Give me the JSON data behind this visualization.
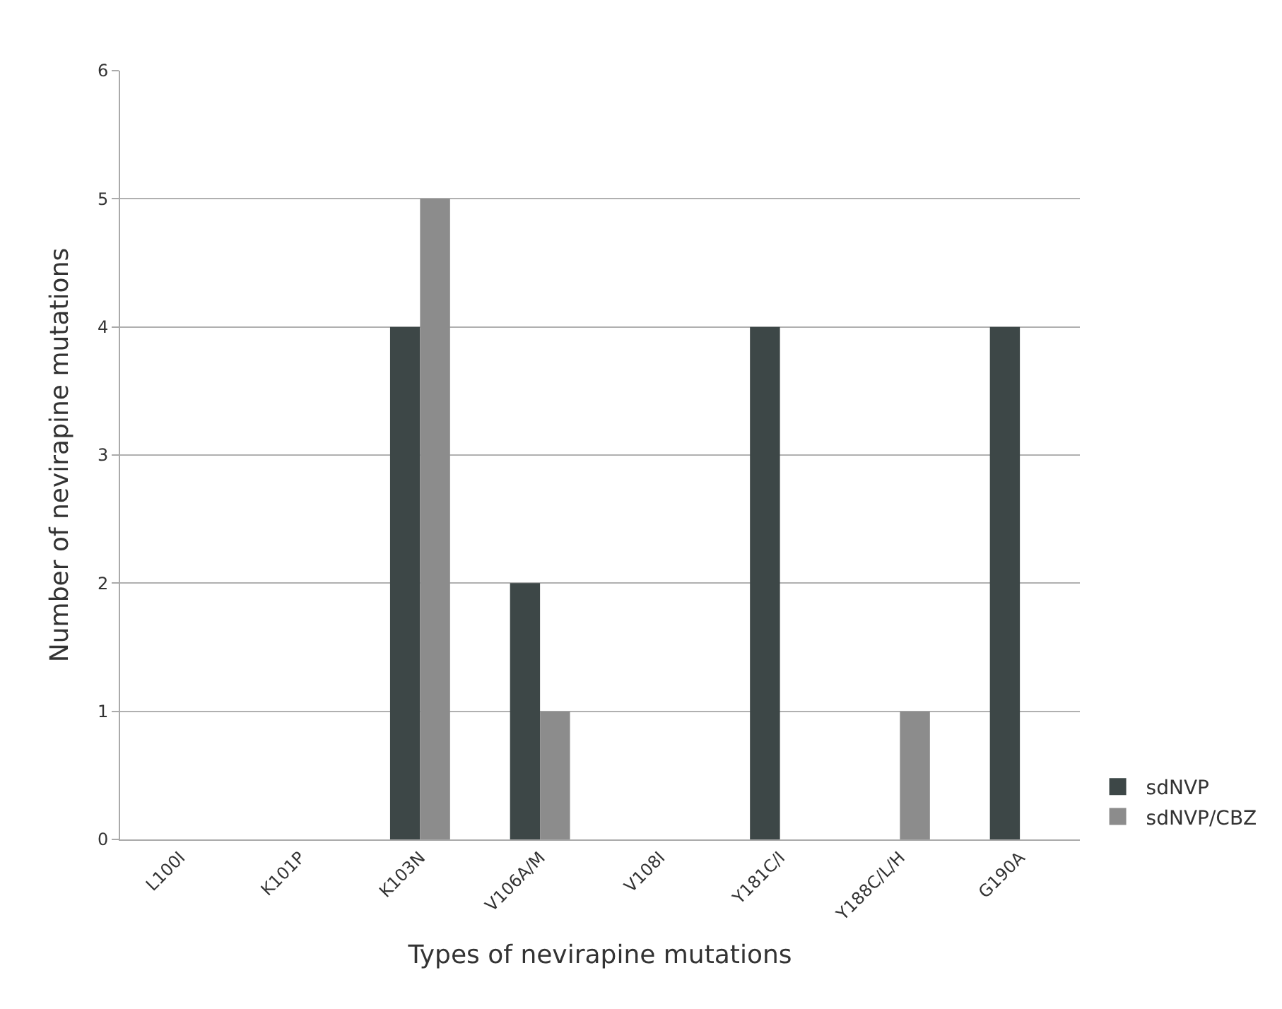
{
  "chart_data": {
    "type": "bar",
    "xlabel": "Types of nevirapine mutations",
    "ylabel": "Number of nevirapine mutations",
    "categories": [
      "L100I",
      "K101P",
      "K103N",
      "V106A/M",
      "V108I",
      "Y181C/I",
      "Y188C/L/H",
      "G190A"
    ],
    "series": [
      {
        "name": "sdNVP",
        "color": "#3d4747",
        "values": [
          0,
          0,
          4,
          2,
          0,
          4,
          0,
          4
        ]
      },
      {
        "name": "sdNVP/CBZ",
        "color": "#8c8c8c",
        "values": [
          0,
          0,
          5,
          1,
          0,
          0,
          1,
          0
        ]
      }
    ],
    "ylim": [
      0,
      6
    ],
    "yticks": [
      0,
      1,
      2,
      3,
      4,
      5,
      6
    ],
    "grid": "y",
    "legend": "bottom right"
  }
}
